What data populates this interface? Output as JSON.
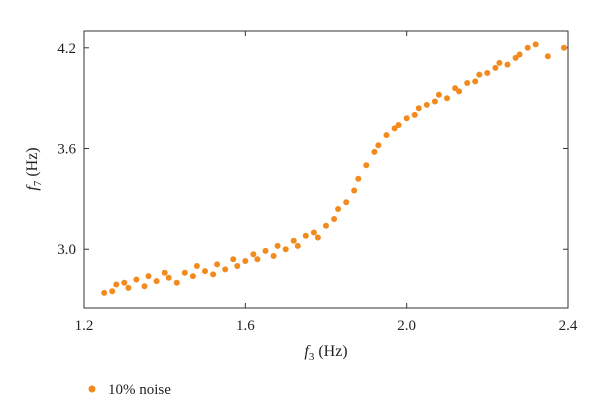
{
  "chart_data": {
    "type": "scatter",
    "x_symbol": "f",
    "x_sub": "3",
    "x_unit": " (Hz)",
    "y_symbol": "f",
    "y_sub": "7",
    "y_unit": " (Hz)",
    "xlim": [
      1.2,
      2.4
    ],
    "ylim": [
      2.65,
      4.3
    ],
    "x_ticks": [
      "1.2",
      "1.6",
      "2.0",
      "2.4"
    ],
    "y_ticks": [
      "3.0",
      "3.6",
      "4.2"
    ],
    "grid": false,
    "legend_position": "bottom-left",
    "series": [
      {
        "name": "10% noise",
        "color": "#f28a1e",
        "points": [
          [
            1.25,
            2.74
          ],
          [
            1.27,
            2.75
          ],
          [
            1.28,
            2.79
          ],
          [
            1.3,
            2.8
          ],
          [
            1.31,
            2.77
          ],
          [
            1.33,
            2.82
          ],
          [
            1.35,
            2.78
          ],
          [
            1.36,
            2.84
          ],
          [
            1.38,
            2.81
          ],
          [
            1.4,
            2.86
          ],
          [
            1.41,
            2.83
          ],
          [
            1.43,
            2.8
          ],
          [
            1.45,
            2.86
          ],
          [
            1.47,
            2.84
          ],
          [
            1.48,
            2.9
          ],
          [
            1.5,
            2.87
          ],
          [
            1.52,
            2.85
          ],
          [
            1.53,
            2.91
          ],
          [
            1.55,
            2.88
          ],
          [
            1.57,
            2.94
          ],
          [
            1.58,
            2.9
          ],
          [
            1.6,
            2.93
          ],
          [
            1.62,
            2.97
          ],
          [
            1.63,
            2.94
          ],
          [
            1.65,
            2.99
          ],
          [
            1.67,
            2.96
          ],
          [
            1.68,
            3.02
          ],
          [
            1.7,
            3.0
          ],
          [
            1.72,
            3.05
          ],
          [
            1.73,
            3.02
          ],
          [
            1.75,
            3.08
          ],
          [
            1.77,
            3.1
          ],
          [
            1.78,
            3.07
          ],
          [
            1.8,
            3.14
          ],
          [
            1.82,
            3.18
          ],
          [
            1.83,
            3.24
          ],
          [
            1.85,
            3.28
          ],
          [
            1.87,
            3.35
          ],
          [
            1.88,
            3.42
          ],
          [
            1.9,
            3.5
          ],
          [
            1.92,
            3.58
          ],
          [
            1.93,
            3.62
          ],
          [
            1.95,
            3.68
          ],
          [
            1.97,
            3.72
          ],
          [
            1.98,
            3.74
          ],
          [
            2.0,
            3.78
          ],
          [
            2.02,
            3.8
          ],
          [
            2.03,
            3.84
          ],
          [
            2.05,
            3.86
          ],
          [
            2.07,
            3.88
          ],
          [
            2.08,
            3.92
          ],
          [
            2.1,
            3.9
          ],
          [
            2.12,
            3.96
          ],
          [
            2.13,
            3.94
          ],
          [
            2.15,
            3.99
          ],
          [
            2.17,
            4.0
          ],
          [
            2.18,
            4.04
          ],
          [
            2.2,
            4.05
          ],
          [
            2.22,
            4.08
          ],
          [
            2.23,
            4.11
          ],
          [
            2.25,
            4.1
          ],
          [
            2.27,
            4.14
          ],
          [
            2.28,
            4.16
          ],
          [
            2.3,
            4.2
          ],
          [
            2.32,
            4.22
          ],
          [
            2.35,
            4.15
          ],
          [
            2.39,
            4.2
          ]
        ]
      }
    ]
  }
}
